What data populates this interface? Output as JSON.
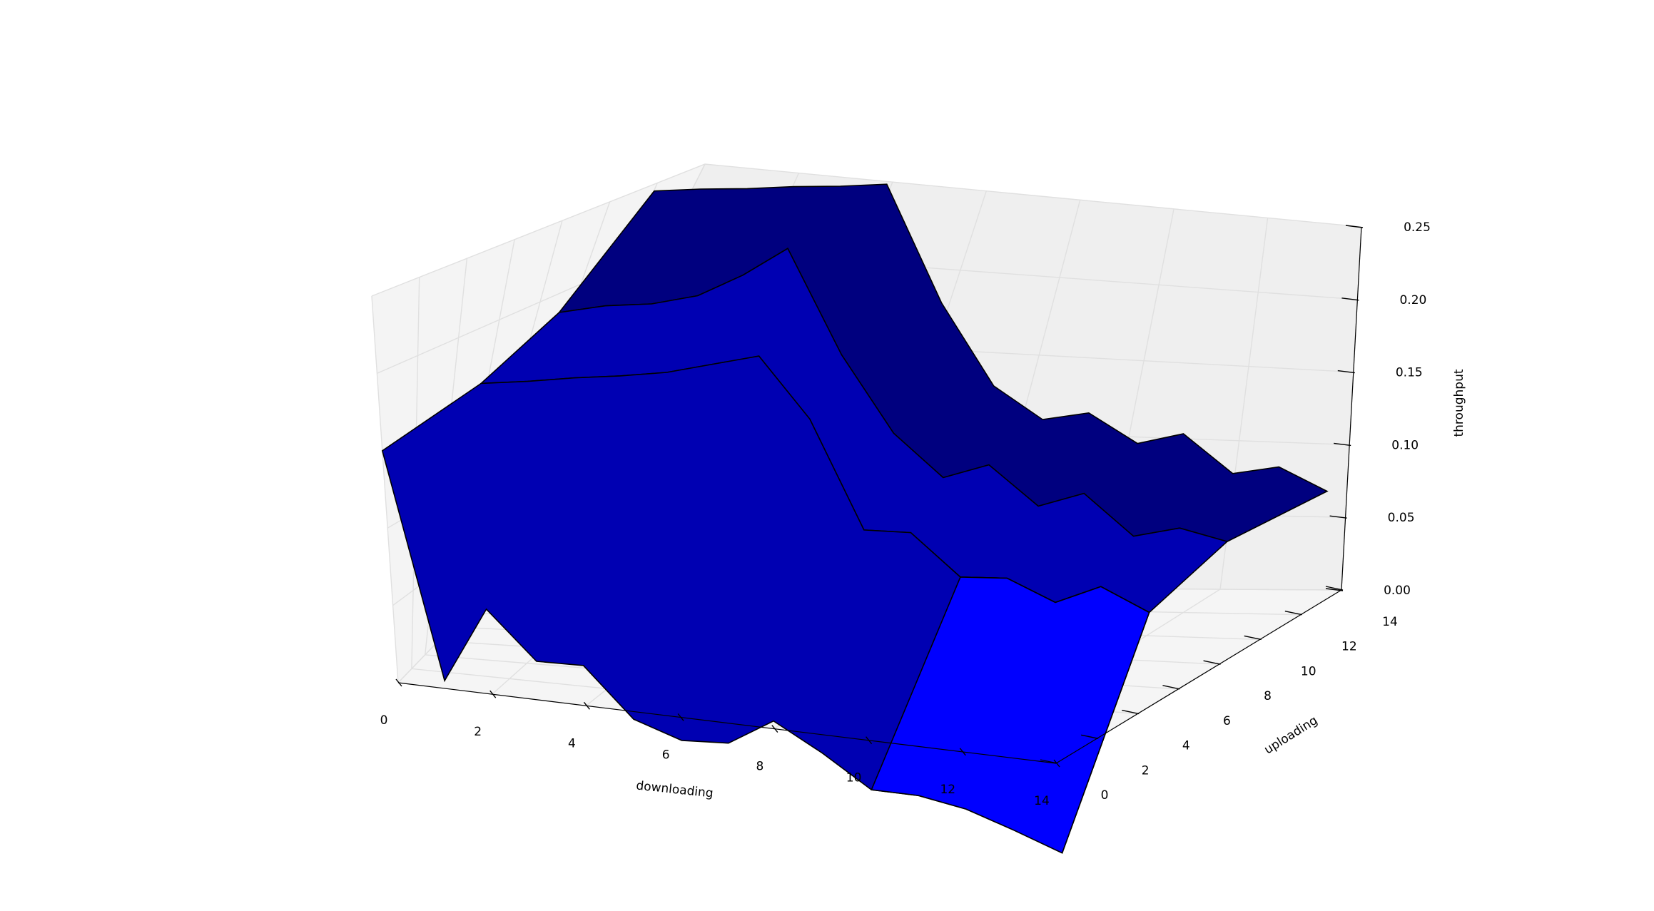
{
  "chart_data": {
    "type": "surface3d",
    "title": "",
    "xlabel": "downloading",
    "ylabel": "uploading",
    "zlabel": "throughput",
    "xlim": [
      0,
      14
    ],
    "ylim": [
      0,
      14
    ],
    "zlim": [
      0,
      0.25
    ],
    "xticks": [
      "0",
      "2",
      "4",
      "6",
      "8",
      "10",
      "12",
      "14"
    ],
    "yticks": [
      "0",
      "2",
      "4",
      "6",
      "8",
      "10",
      "12",
      "14"
    ],
    "zticks": [
      "0.00",
      "0.05",
      "0.10",
      "0.15",
      "0.20",
      "0.25"
    ],
    "grid": true,
    "x": [
      0,
      1,
      2,
      3,
      4,
      5,
      6,
      7,
      8,
      9,
      10,
      11,
      12,
      13,
      14
    ],
    "series": [
      {
        "y": 0,
        "z": [
          0.15,
          0.005,
          0.055,
          0.025,
          0.026,
          -0.005,
          -0.015,
          -0.013,
          0.005,
          -0.012,
          -0.032,
          -0.032,
          -0.037,
          -0.047,
          -0.058
        ]
      },
      {
        "y": 5,
        "z": [
          0.155,
          0.16,
          0.166,
          0.171,
          0.177,
          0.186,
          0.195,
          0.158,
          0.09,
          0.092,
          0.067,
          0.07,
          0.058,
          0.072,
          0.059
        ]
      },
      {
        "y": 9,
        "z": [
          0.17,
          0.178,
          0.183,
          0.192,
          0.209,
          0.23,
          0.165,
          0.118,
          0.093,
          0.105,
          0.082,
          0.094,
          0.07,
          0.079,
          0.074
        ]
      },
      {
        "y": 14,
        "z": [
          0.21,
          0.215,
          0.219,
          0.224,
          0.228,
          0.233,
          0.16,
          0.11,
          0.092,
          0.1,
          0.084,
          0.094,
          0.072,
          0.08,
          0.068
        ]
      }
    ],
    "colors": {
      "far": "#00007f",
      "mid": "#0000b2",
      "near": "#0000ff",
      "pane_left": "#f4f4f4",
      "pane_back": "#efefef",
      "pane_floor": "#f5f5f5"
    }
  }
}
